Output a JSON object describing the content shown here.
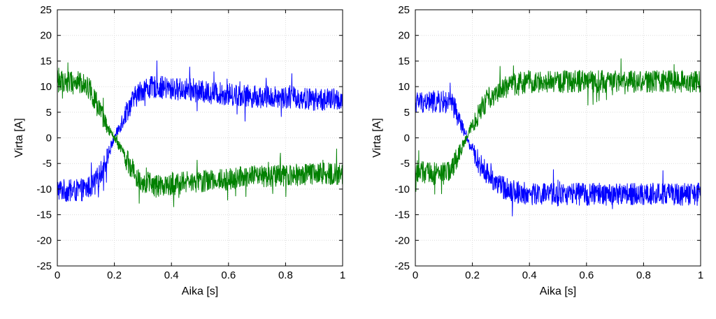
{
  "chart_data": [
    {
      "type": "line",
      "xlabel": "Aika [s]",
      "ylabel": "Virta [A]",
      "xlim": [
        0,
        1
      ],
      "ylim": [
        -25,
        25
      ],
      "xticks": [
        "0",
        "0.2",
        "0.4",
        "0.6",
        "0.8",
        "1"
      ],
      "yticks": [
        "25",
        "20",
        "15",
        "10",
        "5",
        "0",
        "-5",
        "-10",
        "-15",
        "-20",
        "-25"
      ],
      "grid": true,
      "series": [
        {
          "color": "#0000ff",
          "x": [
            0,
            0.05,
            0.1,
            0.13,
            0.16,
            0.19,
            0.2,
            0.22,
            0.25,
            0.28,
            0.3,
            0.35,
            0.4,
            0.45,
            0.5,
            0.6,
            0.7,
            0.8,
            0.9,
            1.0
          ],
          "y": [
            -10,
            -10.5,
            -10,
            -9,
            -6,
            -1.5,
            0,
            2.5,
            6,
            8.5,
            9.5,
            10,
            9.5,
            9.5,
            9,
            8.5,
            8,
            8,
            7.5,
            7.5
          ]
        },
        {
          "color": "#008000",
          "x": [
            0,
            0.05,
            0.1,
            0.12,
            0.15,
            0.18,
            0.2,
            0.22,
            0.25,
            0.28,
            0.3,
            0.35,
            0.4,
            0.5,
            0.6,
            0.7,
            0.8,
            0.9,
            1.0
          ],
          "y": [
            11,
            11,
            10.5,
            9,
            5,
            1.5,
            0,
            -2,
            -5,
            -7.5,
            -8.5,
            -9.5,
            -9,
            -8.5,
            -8,
            -7.5,
            -7.5,
            -7,
            -7
          ]
        }
      ]
    },
    {
      "type": "line",
      "xlabel": "Aika [s]",
      "ylabel": "Virta [A]",
      "xlim": [
        0,
        1
      ],
      "ylim": [
        -25,
        25
      ],
      "xticks": [
        "0",
        "0.2",
        "0.4",
        "0.6",
        "0.8",
        "1"
      ],
      "yticks": [
        "25",
        "20",
        "15",
        "10",
        "5",
        "0",
        "-5",
        "-10",
        "-15",
        "-20",
        "-25"
      ],
      "grid": true,
      "series": [
        {
          "color": "#0000ff",
          "x": [
            0,
            0.05,
            0.1,
            0.13,
            0.15,
            0.17,
            0.18,
            0.2,
            0.23,
            0.26,
            0.3,
            0.35,
            0.4,
            0.5,
            0.6,
            0.7,
            0.8,
            0.9,
            1.0
          ],
          "y": [
            7,
            7,
            7,
            6.5,
            4,
            1.5,
            0,
            -2.5,
            -5.5,
            -7.5,
            -9.5,
            -10.5,
            -11,
            -11,
            -11,
            -11,
            -11,
            -11,
            -11
          ]
        },
        {
          "color": "#008000",
          "x": [
            0,
            0.05,
            0.1,
            0.13,
            0.15,
            0.17,
            0.18,
            0.2,
            0.23,
            0.26,
            0.3,
            0.35,
            0.4,
            0.5,
            0.6,
            0.7,
            0.8,
            0.9,
            1.0
          ],
          "y": [
            -6.5,
            -7,
            -7,
            -6,
            -3.5,
            -1,
            0,
            2.5,
            5.5,
            8,
            9.5,
            10.5,
            11,
            11,
            11,
            11,
            11,
            11,
            11
          ]
        }
      ]
    }
  ]
}
